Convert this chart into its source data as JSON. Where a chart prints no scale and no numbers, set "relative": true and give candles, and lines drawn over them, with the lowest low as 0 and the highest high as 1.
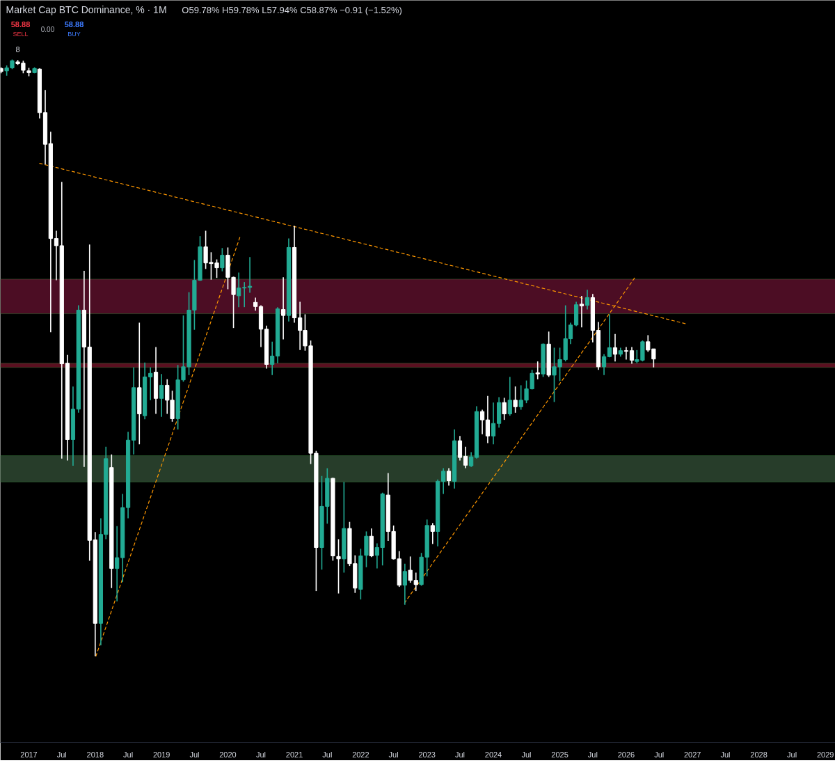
{
  "chart_data": {
    "type": "candlestick",
    "title": "Market Cap BTC Dominance, % · 1M",
    "subtitle": "O59.78% H59.78% L57.94% C58.87% −0.91 (−1.52%)",
    "annotations": [
      "58.88",
      "SELL",
      "0.00",
      "58.88",
      "BUY",
      "8"
    ],
    "relative": true,
    "xlim": [
      "2016-07-28",
      "2029-02-25"
    ],
    "xticks": [
      "2017",
      {
        "value": "2017-07",
        "label": "Jul"
      },
      "2018",
      {
        "value": "2018-07",
        "label": "Jul"
      },
      "2019",
      {
        "value": "2019-07",
        "label": "Jul"
      },
      "2020",
      {
        "value": "2020-07",
        "label": "Jul"
      },
      "2021",
      {
        "value": "2021-07",
        "label": "Jul"
      },
      "2022",
      {
        "value": "2022-07",
        "label": "Jul"
      },
      "2023",
      {
        "value": "2023-07",
        "label": "Jul"
      },
      "2024",
      {
        "value": "2024-07",
        "label": "Jul"
      },
      "2025",
      {
        "value": "2025-07",
        "label": "Jul"
      },
      "2026",
      {
        "value": "2026-07",
        "label": "Jul"
      },
      "2027",
      {
        "value": "2027-07",
        "label": "Jul"
      },
      "2028",
      {
        "value": "2028-07",
        "label": "Jul"
      },
      "2029"
    ],
    "x": [
      "2016-08",
      "2016-09",
      "2016-10",
      "2016-11",
      "2016-12",
      "2017-01",
      "2017-02",
      "2017-03",
      "2017-04",
      "2017-05",
      "2017-06",
      "2017-07",
      "2017-08",
      "2017-09",
      "2017-10",
      "2017-11",
      "2017-12",
      "2018-01",
      "2018-02",
      "2018-03",
      "2018-04",
      "2018-05",
      "2018-06",
      "2018-07",
      "2018-08",
      "2018-09",
      "2018-10",
      "2018-11",
      "2018-12",
      "2019-01",
      "2019-02",
      "2019-03",
      "2019-04",
      "2019-05",
      "2019-06",
      "2019-07",
      "2019-08",
      "2019-09",
      "2019-10",
      "2019-11",
      "2019-12",
      "2020-01",
      "2020-02",
      "2020-03",
      "2020-04",
      "2020-05",
      "2020-06",
      "2020-07",
      "2020-08",
      "2020-09",
      "2020-10",
      "2020-11",
      "2020-12",
      "2021-01",
      "2021-02",
      "2021-03",
      "2021-04",
      "2021-05",
      "2021-06",
      "2021-07",
      "2021-08",
      "2021-09",
      "2021-10",
      "2021-11",
      "2021-12",
      "2022-01",
      "2022-02",
      "2022-03",
      "2022-04",
      "2022-05",
      "2022-06",
      "2022-07",
      "2022-08",
      "2022-09",
      "2022-10",
      "2022-11",
      "2022-12",
      "2023-01",
      "2023-02",
      "2023-03",
      "2023-04",
      "2023-05",
      "2023-06",
      "2023-07",
      "2023-08",
      "2023-09",
      "2023-10",
      "2023-11",
      "2023-12",
      "2024-01",
      "2024-02",
      "2024-03",
      "2024-04",
      "2024-05",
      "2024-06",
      "2024-07",
      "2024-08",
      "2024-09",
      "2024-10",
      "2024-11",
      "2024-12",
      "2025-01",
      "2025-02",
      "2025-03",
      "2025-04",
      "2025-05",
      "2025-06",
      "2025-07",
      "2025-08",
      "2025-09",
      "2025-10",
      "2025-11",
      "2025-12",
      "2026-01",
      "2026-02",
      "2026-03",
      "2026-04",
      "2026-05",
      "2026-06"
    ],
    "ohlc": [
      [
        0.985,
        0.987,
        0.977,
        0.98
      ],
      [
        0.981,
        0.99,
        0.973,
        0.986
      ],
      [
        0.986,
        1.0,
        0.984,
        0.998
      ],
      [
        0.996,
        0.999,
        0.991,
        0.993
      ],
      [
        0.994,
        0.998,
        0.977,
        0.982
      ],
      [
        0.981,
        0.986,
        0.972,
        0.978
      ],
      [
        0.978,
        0.987,
        0.977,
        0.985
      ],
      [
        0.984,
        0.985,
        0.901,
        0.911
      ],
      [
        0.911,
        0.949,
        0.824,
        0.858
      ],
      [
        0.859,
        0.879,
        0.543,
        0.7
      ],
      [
        0.7,
        0.713,
        0.63,
        0.688
      ],
      [
        0.688,
        0.795,
        0.331,
        0.49
      ],
      [
        0.491,
        0.505,
        0.328,
        0.363
      ],
      [
        0.363,
        0.452,
        0.319,
        0.414
      ],
      [
        0.414,
        0.588,
        0.408,
        0.58
      ],
      [
        0.58,
        0.646,
        0.317,
        0.518
      ],
      [
        0.518,
        0.69,
        0.16,
        0.194
      ],
      [
        0.195,
        0.208,
        0.0,
        0.055
      ],
      [
        0.055,
        0.231,
        0.018,
        0.204
      ],
      [
        0.204,
        0.351,
        0.196,
        0.331
      ],
      [
        0.316,
        0.338,
        0.114,
        0.147
      ],
      [
        0.147,
        0.218,
        0.092,
        0.165
      ],
      [
        0.165,
        0.272,
        0.124,
        0.249
      ],
      [
        0.249,
        0.376,
        0.231,
        0.362
      ],
      [
        0.362,
        0.484,
        0.338,
        0.45
      ],
      [
        0.45,
        0.559,
        0.355,
        0.406
      ],
      [
        0.403,
        0.492,
        0.397,
        0.468
      ],
      [
        0.468,
        0.484,
        0.429,
        0.474
      ],
      [
        0.476,
        0.518,
        0.406,
        0.432
      ],
      [
        0.432,
        0.473,
        0.401,
        0.454
      ],
      [
        0.454,
        0.464,
        0.406,
        0.429
      ],
      [
        0.429,
        0.445,
        0.393,
        0.398
      ],
      [
        0.398,
        0.488,
        0.38,
        0.463
      ],
      [
        0.463,
        0.571,
        0.46,
        0.485
      ],
      [
        0.485,
        0.61,
        0.471,
        0.58
      ],
      [
        0.58,
        0.664,
        0.547,
        0.63
      ],
      [
        0.63,
        0.704,
        0.629,
        0.686
      ],
      [
        0.686,
        0.713,
        0.649,
        0.659
      ],
      [
        0.66,
        0.677,
        0.631,
        0.658
      ],
      [
        0.659,
        0.665,
        0.634,
        0.651
      ],
      [
        0.651,
        0.684,
        0.645,
        0.672
      ],
      [
        0.672,
        0.685,
        0.615,
        0.635
      ],
      [
        0.635,
        0.636,
        0.55,
        0.606
      ],
      [
        0.604,
        0.643,
        0.585,
        0.617
      ],
      [
        0.617,
        0.627,
        0.585,
        0.618
      ],
      [
        0.618,
        0.669,
        0.609,
        0.62
      ],
      [
        0.593,
        0.601,
        0.579,
        0.586
      ],
      [
        0.586,
        0.588,
        0.518,
        0.548
      ],
      [
        0.548,
        0.554,
        0.482,
        0.489
      ],
      [
        0.489,
        0.527,
        0.471,
        0.503
      ],
      [
        0.503,
        0.585,
        0.491,
        0.582
      ],
      [
        0.581,
        0.635,
        0.531,
        0.571
      ],
      [
        0.571,
        0.7,
        0.561,
        0.685
      ],
      [
        0.685,
        0.721,
        0.559,
        0.567
      ],
      [
        0.567,
        0.594,
        0.513,
        0.546
      ],
      [
        0.546,
        0.573,
        0.512,
        0.52
      ],
      [
        0.52,
        0.529,
        0.322,
        0.34
      ],
      [
        0.34,
        0.344,
        0.109,
        0.182
      ],
      [
        0.182,
        0.302,
        0.145,
        0.251
      ],
      [
        0.251,
        0.315,
        0.222,
        0.298
      ],
      [
        0.298,
        0.299,
        0.16,
        0.168
      ],
      [
        0.167,
        0.196,
        0.105,
        0.163
      ],
      [
        0.163,
        0.292,
        0.14,
        0.214
      ],
      [
        0.214,
        0.225,
        0.151,
        0.155
      ],
      [
        0.155,
        0.169,
        0.106,
        0.114
      ],
      [
        0.112,
        0.18,
        0.095,
        0.168
      ],
      [
        0.169,
        0.209,
        0.149,
        0.201
      ],
      [
        0.201,
        0.214,
        0.166,
        0.168
      ],
      [
        0.169,
        0.189,
        0.147,
        0.182
      ],
      [
        0.182,
        0.274,
        0.152,
        0.272
      ],
      [
        0.27,
        0.307,
        0.193,
        0.209
      ],
      [
        0.209,
        0.219,
        0.162,
        0.163
      ],
      [
        0.163,
        0.176,
        0.116,
        0.119
      ],
      [
        0.119,
        0.155,
        0.086,
        0.142
      ],
      [
        0.144,
        0.167,
        0.123,
        0.127
      ],
      [
        0.127,
        0.14,
        0.109,
        0.12
      ],
      [
        0.12,
        0.173,
        0.118,
        0.166
      ],
      [
        0.166,
        0.229,
        0.134,
        0.219
      ],
      [
        0.219,
        0.223,
        0.188,
        0.209
      ],
      [
        0.209,
        0.296,
        0.184,
        0.293
      ],
      [
        0.293,
        0.315,
        0.272,
        0.31
      ],
      [
        0.31,
        0.315,
        0.286,
        0.294
      ],
      [
        0.293,
        0.38,
        0.281,
        0.361
      ],
      [
        0.361,
        0.369,
        0.328,
        0.333
      ],
      [
        0.335,
        0.351,
        0.315,
        0.32
      ],
      [
        0.319,
        0.342,
        0.317,
        0.334
      ],
      [
        0.333,
        0.419,
        0.331,
        0.41
      ],
      [
        0.41,
        0.413,
        0.372,
        0.396
      ],
      [
        0.396,
        0.436,
        0.357,
        0.369
      ],
      [
        0.369,
        0.425,
        0.355,
        0.39
      ],
      [
        0.39,
        0.434,
        0.383,
        0.425
      ],
      [
        0.425,
        0.433,
        0.396,
        0.406
      ],
      [
        0.406,
        0.468,
        0.403,
        0.429
      ],
      [
        0.429,
        0.452,
        0.408,
        0.418
      ],
      [
        0.418,
        0.454,
        0.413,
        0.429
      ],
      [
        0.429,
        0.462,
        0.424,
        0.448
      ],
      [
        0.448,
        0.48,
        0.447,
        0.474
      ],
      [
        0.475,
        0.494,
        0.464,
        0.473
      ],
      [
        0.473,
        0.524,
        0.468,
        0.523
      ],
      [
        0.523,
        0.544,
        0.468,
        0.471
      ],
      [
        0.471,
        0.517,
        0.426,
        0.485
      ],
      [
        0.485,
        0.517,
        0.461,
        0.497
      ],
      [
        0.497,
        0.588,
        0.494,
        0.532
      ],
      [
        0.532,
        0.559,
        0.523,
        0.555
      ],
      [
        0.555,
        0.594,
        0.553,
        0.589
      ],
      [
        0.59,
        0.604,
        0.551,
        0.587
      ],
      [
        0.588,
        0.614,
        0.581,
        0.601
      ],
      [
        0.601,
        0.607,
        0.526,
        0.546
      ],
      [
        0.546,
        0.56,
        0.48,
        0.485
      ],
      [
        0.485,
        0.506,
        0.471,
        0.502
      ],
      [
        0.502,
        0.573,
        0.501,
        0.517
      ],
      [
        0.517,
        0.54,
        0.494,
        0.506
      ],
      [
        0.506,
        0.517,
        0.502,
        0.512
      ],
      [
        0.512,
        0.518,
        0.497,
        0.511
      ],
      [
        0.512,
        0.518,
        0.49,
        0.496
      ],
      [
        0.494,
        0.513,
        0.491,
        0.497
      ],
      [
        0.496,
        0.529,
        0.494,
        0.527
      ],
      [
        0.527,
        0.538,
        0.51,
        0.513
      ],
      [
        0.515,
        0.515,
        0.484,
        0.498
      ]
    ],
    "colors": [
      "#ffffff",
      "#22ab94",
      "#22ab94",
      "#ffffff",
      "#ffffff",
      "#ffffff",
      "#22ab94",
      "#ffffff",
      "#ffffff",
      "#ffffff",
      "#ffffff",
      "#ffffff",
      "#ffffff",
      "#22ab94",
      "#22ab94",
      "#ffffff",
      "#ffffff",
      "#ffffff",
      "#22ab94",
      "#22ab94",
      "#ffffff",
      "#22ab94",
      "#22ab94",
      "#22ab94",
      "#22ab94",
      "#ffffff",
      "#22ab94",
      "#22ab94",
      "#ffffff",
      "#22ab94",
      "#ffffff",
      "#ffffff",
      "#22ab94",
      "#22ab94",
      "#22ab94",
      "#22ab94",
      "#22ab94",
      "#ffffff",
      "#ffffff",
      "#ffffff",
      "#22ab94",
      "#ffffff",
      "#ffffff",
      "#22ab94",
      "#22ab94",
      "#22ab94",
      "#ffffff",
      "#ffffff",
      "#ffffff",
      "#22ab94",
      "#22ab94",
      "#ffffff",
      "#22ab94",
      "#ffffff",
      "#ffffff",
      "#ffffff",
      "#ffffff",
      "#ffffff",
      "#22ab94",
      "#22ab94",
      "#ffffff",
      "#ffffff",
      "#22ab94",
      "#ffffff",
      "#ffffff",
      "#22ab94",
      "#22ab94",
      "#ffffff",
      "#22ab94",
      "#22ab94",
      "#ffffff",
      "#ffffff",
      "#ffffff",
      "#22ab94",
      "#ffffff",
      "#ffffff",
      "#22ab94",
      "#22ab94",
      "#ffffff",
      "#22ab94",
      "#22ab94",
      "#ffffff",
      "#22ab94",
      "#ffffff",
      "#ffffff",
      "#22ab94",
      "#22ab94",
      "#ffffff",
      "#ffffff",
      "#22ab94",
      "#22ab94",
      "#ffffff",
      "#22ab94",
      "#ffffff",
      "#22ab94",
      "#22ab94",
      "#22ab94",
      "#ffffff",
      "#22ab94",
      "#ffffff",
      "#22ab94",
      "#22ab94",
      "#22ab94",
      "#22ab94",
      "#22ab94",
      "#ffffff",
      "#22ab94",
      "#ffffff",
      "#ffffff",
      "#22ab94",
      "#22ab94",
      "#ffffff",
      "#22ab94",
      "#ffffff",
      "#ffffff",
      "#22ab94",
      "#22ab94",
      "#ffffff",
      "#ffffff"
    ],
    "bands": [
      {
        "axis": "y",
        "from": 0.574,
        "to": 0.632,
        "color": "#4c0d24"
      },
      {
        "axis": "y",
        "from": 0.484,
        "to": 0.491,
        "color": "#5a1020"
      },
      {
        "axis": "y",
        "from": 0.292,
        "to": 0.336,
        "color": "#273d2a"
      }
    ],
    "series": [
      {
        "type": "line",
        "x": [
          "2017-03-01",
          "2026-11-26"
        ],
        "values": [
          0.826,
          0.557
        ],
        "color": "#ff9800",
        "line_style": "dashed"
      },
      {
        "type": "line",
        "x": [
          "2018-01-05",
          "2020-03-07"
        ],
        "values": [
          0.0,
          0.702
        ],
        "color": "#ff9800",
        "line_style": "dashed"
      },
      {
        "type": "line",
        "x": [
          "2022-08-30",
          "2026-02-19"
        ],
        "values": [
          0.089,
          0.635
        ],
        "color": "#ff9800",
        "line_style": "dashed"
      }
    ]
  }
}
